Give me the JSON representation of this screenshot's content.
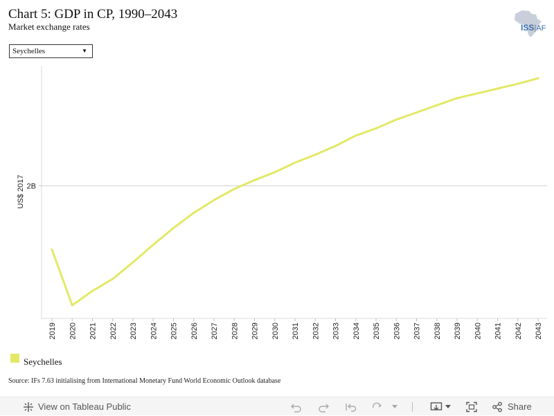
{
  "header": {
    "title": "Chart 5: GDP in CP, 1990–2043",
    "subtitle": "Market exchange rates",
    "logo_text": "ISS",
    "logo_text_suffix": "AF"
  },
  "filter": {
    "selected": "Seychelles"
  },
  "chart_data": {
    "type": "line",
    "title": "Chart 5: GDP in CP, 1990–2043",
    "subtitle": "Market exchange rates",
    "xlabel": "",
    "ylabel": "US$ 2017",
    "x": [
      "2019",
      "2020",
      "2021",
      "2022",
      "2023",
      "2024",
      "2025",
      "2026",
      "2027",
      "2028",
      "2029",
      "2030",
      "2031",
      "2032",
      "2033",
      "2034",
      "2035",
      "2036",
      "2037",
      "2038",
      "2039",
      "2040",
      "2041",
      "2042",
      "2043"
    ],
    "series": [
      {
        "name": "Seychelles",
        "color": "#e3e866",
        "values": [
          1.6,
          1.25,
          1.34,
          1.415,
          1.52,
          1.63,
          1.735,
          1.83,
          1.91,
          1.98,
          2.035,
          2.085,
          2.145,
          2.195,
          2.25,
          2.315,
          2.36,
          2.415,
          2.46,
          2.505,
          2.55,
          2.58,
          2.61,
          2.64,
          2.675
        ]
      }
    ],
    "yticks": [
      {
        "value": 2.0,
        "label": "2B"
      }
    ],
    "ylim": [
      1.25,
      2.675
    ],
    "grid": "horizontal",
    "legend_position": "bottom-left"
  },
  "legend": {
    "items": [
      {
        "label": "Seychelles",
        "color": "#e3e866"
      }
    ]
  },
  "source": "Source: IFs 7.63 initialising from International Monetary Fund World Economic Outlook database",
  "footer": {
    "view_label": "View on Tableau Public",
    "share_label": "Share"
  }
}
